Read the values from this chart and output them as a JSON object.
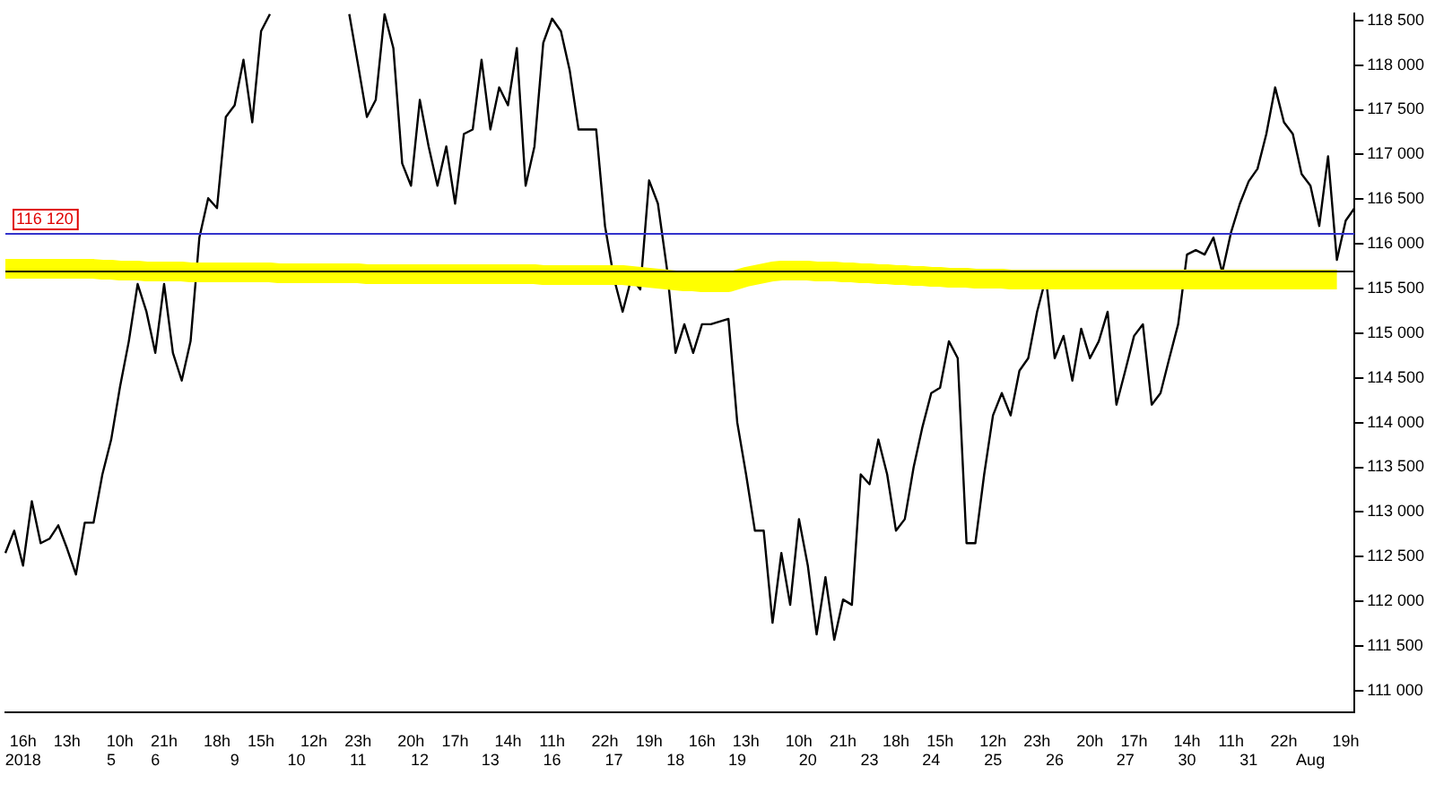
{
  "chart_data": {
    "type": "line",
    "categories": [
      null,
      null,
      "16h\n2018",
      null,
      null,
      null,
      null,
      "13h",
      null,
      null,
      null,
      null,
      "\n5",
      "10h",
      null,
      null,
      null,
      "\n6",
      "21h",
      null,
      null,
      null,
      null,
      null,
      "18h",
      null,
      "\n9",
      null,
      null,
      "15h",
      null,
      null,
      null,
      "\n10",
      null,
      "12h",
      null,
      null,
      null,
      null,
      "23h\n11",
      null,
      null,
      null,
      null,
      null,
      "20h",
      "\n12",
      null,
      null,
      null,
      "17h",
      null,
      null,
      null,
      "\n13",
      null,
      "14h",
      null,
      null,
      null,
      null,
      "11h\n16",
      null,
      null,
      null,
      null,
      null,
      "22h",
      "\n17",
      null,
      null,
      null,
      "19h",
      null,
      null,
      "\n18",
      null,
      null,
      "16h",
      null,
      null,
      null,
      "\n19",
      "13h",
      null,
      null,
      null,
      null,
      null,
      "10h",
      "\n20",
      null,
      null,
      null,
      "21h",
      null,
      null,
      "\n23",
      null,
      null,
      "18h",
      null,
      null,
      null,
      "\n24",
      "15h",
      null,
      null,
      null,
      null,
      null,
      "12h\n25",
      null,
      null,
      null,
      null,
      "23h",
      null,
      "\n26",
      null,
      null,
      null,
      "20h",
      null,
      null,
      null,
      "\n27",
      "17h",
      null,
      null,
      null,
      null,
      null,
      "14h\n30",
      null,
      null,
      null,
      null,
      "11h",
      null,
      "\n31",
      null,
      null,
      null,
      "22h",
      null,
      null,
      "\nAug",
      null,
      null,
      null,
      "19h",
      null
    ],
    "ylim": [
      110760,
      118580
    ],
    "yticks": [
      {
        "value": 111000,
        "label": "111 000"
      },
      {
        "value": 111500,
        "label": "111 500"
      },
      {
        "value": 112000,
        "label": "112 000"
      },
      {
        "value": 112500,
        "label": "112 500"
      },
      {
        "value": 113000,
        "label": "113 000"
      },
      {
        "value": 113500,
        "label": "113 500"
      },
      {
        "value": 114000,
        "label": "114 000"
      },
      {
        "value": 114500,
        "label": "114 500"
      },
      {
        "value": 115000,
        "label": "115 000"
      },
      {
        "value": 115500,
        "label": "115 500"
      },
      {
        "value": 116000,
        "label": "116 000"
      },
      {
        "value": 116500,
        "label": "116 500"
      },
      {
        "value": 117000,
        "label": "117 000"
      },
      {
        "value": 117500,
        "label": "117 500"
      },
      {
        "value": 118000,
        "label": "118 000"
      },
      {
        "value": 118500,
        "label": "118 500"
      }
    ],
    "grid": false,
    "series": [
      {
        "color": "#ffff00",
        "values": [
          115720,
          115720,
          115720,
          115720,
          115720,
          115720,
          115720,
          115720,
          115720,
          115720,
          115720,
          115710,
          115710,
          115700,
          115700,
          115700,
          115690,
          115690,
          115690,
          115690,
          115690,
          115680,
          115680,
          115680,
          115680,
          115680,
          115680,
          115680,
          115680,
          115680,
          115680,
          115670,
          115670,
          115670,
          115670,
          115670,
          115670,
          115670,
          115670,
          115670,
          115670,
          115660,
          115660,
          115660,
          115660,
          115660,
          115660,
          115660,
          115660,
          115660,
          115660,
          115660,
          115660,
          115660,
          115660,
          115660,
          115660,
          115660,
          115660,
          115660,
          115660,
          115650,
          115650,
          115650,
          115650,
          115650,
          115650,
          115650,
          115650,
          115650,
          115650,
          115640,
          115630,
          115620,
          115610,
          115600,
          115590,
          115580,
          115580,
          115570,
          115570,
          115570,
          115570,
          115600,
          115630,
          115650,
          115670,
          115690,
          115700,
          115700,
          115700,
          115700,
          115690,
          115690,
          115690,
          115680,
          115680,
          115670,
          115670,
          115660,
          115660,
          115650,
          115650,
          115640,
          115640,
          115630,
          115630,
          115620,
          115620,
          115620,
          115610,
          115610,
          115610,
          115610,
          115600,
          115600,
          115600,
          115600,
          115600,
          115600,
          115600,
          115600,
          115600,
          115600,
          115600,
          115600,
          115600,
          115600,
          115600,
          115600,
          115600,
          115600,
          115600,
          115600,
          115600,
          115600,
          115600,
          115600,
          115600,
          115600,
          115600,
          115600,
          115600,
          115600,
          115600,
          115600,
          115600,
          115600,
          115600,
          115600,
          115600,
          115600,
          null,
          null
        ]
      },
      {
        "color": "#000000",
        "values": [
          112540,
          112790,
          112400,
          113120,
          112650,
          112700,
          112850,
          112590,
          112300,
          112880,
          112880,
          113420,
          113810,
          114400,
          114910,
          115550,
          115240,
          114780,
          115550,
          114780,
          114470,
          114910,
          116070,
          116510,
          116400,
          117420,
          117550,
          118060,
          117360,
          118380,
          118570,
          null,
          null,
          null,
          null,
          null,
          null,
          null,
          null,
          118570,
          118000,
          117420,
          117610,
          118570,
          118190,
          116900,
          116650,
          117610,
          117090,
          116650,
          117090,
          116450,
          117230,
          117280,
          118060,
          117280,
          117750,
          117550,
          118190,
          116650,
          117090,
          118250,
          118520,
          118380,
          117940,
          117280,
          117280,
          117280,
          116200,
          115620,
          115240,
          115620,
          115490,
          116710,
          116450,
          115740,
          114780,
          115100,
          114780,
          115100,
          115100,
          115130,
          115160,
          114000,
          113420,
          112790,
          112790,
          111760,
          112540,
          111960,
          112920,
          112400,
          111630,
          112270,
          111570,
          112020,
          111960,
          113420,
          113310,
          113810,
          113420,
          112790,
          112920,
          113500,
          113950,
          114330,
          114390,
          114910,
          114720,
          112650,
          112650,
          113420,
          114080,
          114330,
          114080,
          114580,
          114720,
          115240,
          115620,
          114720,
          114970,
          114470,
          115050,
          114720,
          114910,
          115240,
          114200,
          114580,
          114970,
          115100,
          114200,
          114330,
          114720,
          115100,
          115880,
          115930,
          115880,
          116070,
          115680,
          116130,
          116450,
          116700,
          116840,
          117230,
          117750,
          117360,
          117230,
          116780,
          116650,
          116200,
          116980,
          115820,
          116260,
          116400
        ]
      }
    ],
    "ref_lines": [
      {
        "axis": "y",
        "value": 116120,
        "label": "116 120",
        "color": "#3333cc"
      },
      {
        "axis": "y",
        "value": 115700,
        "color": "#000000"
      }
    ]
  }
}
